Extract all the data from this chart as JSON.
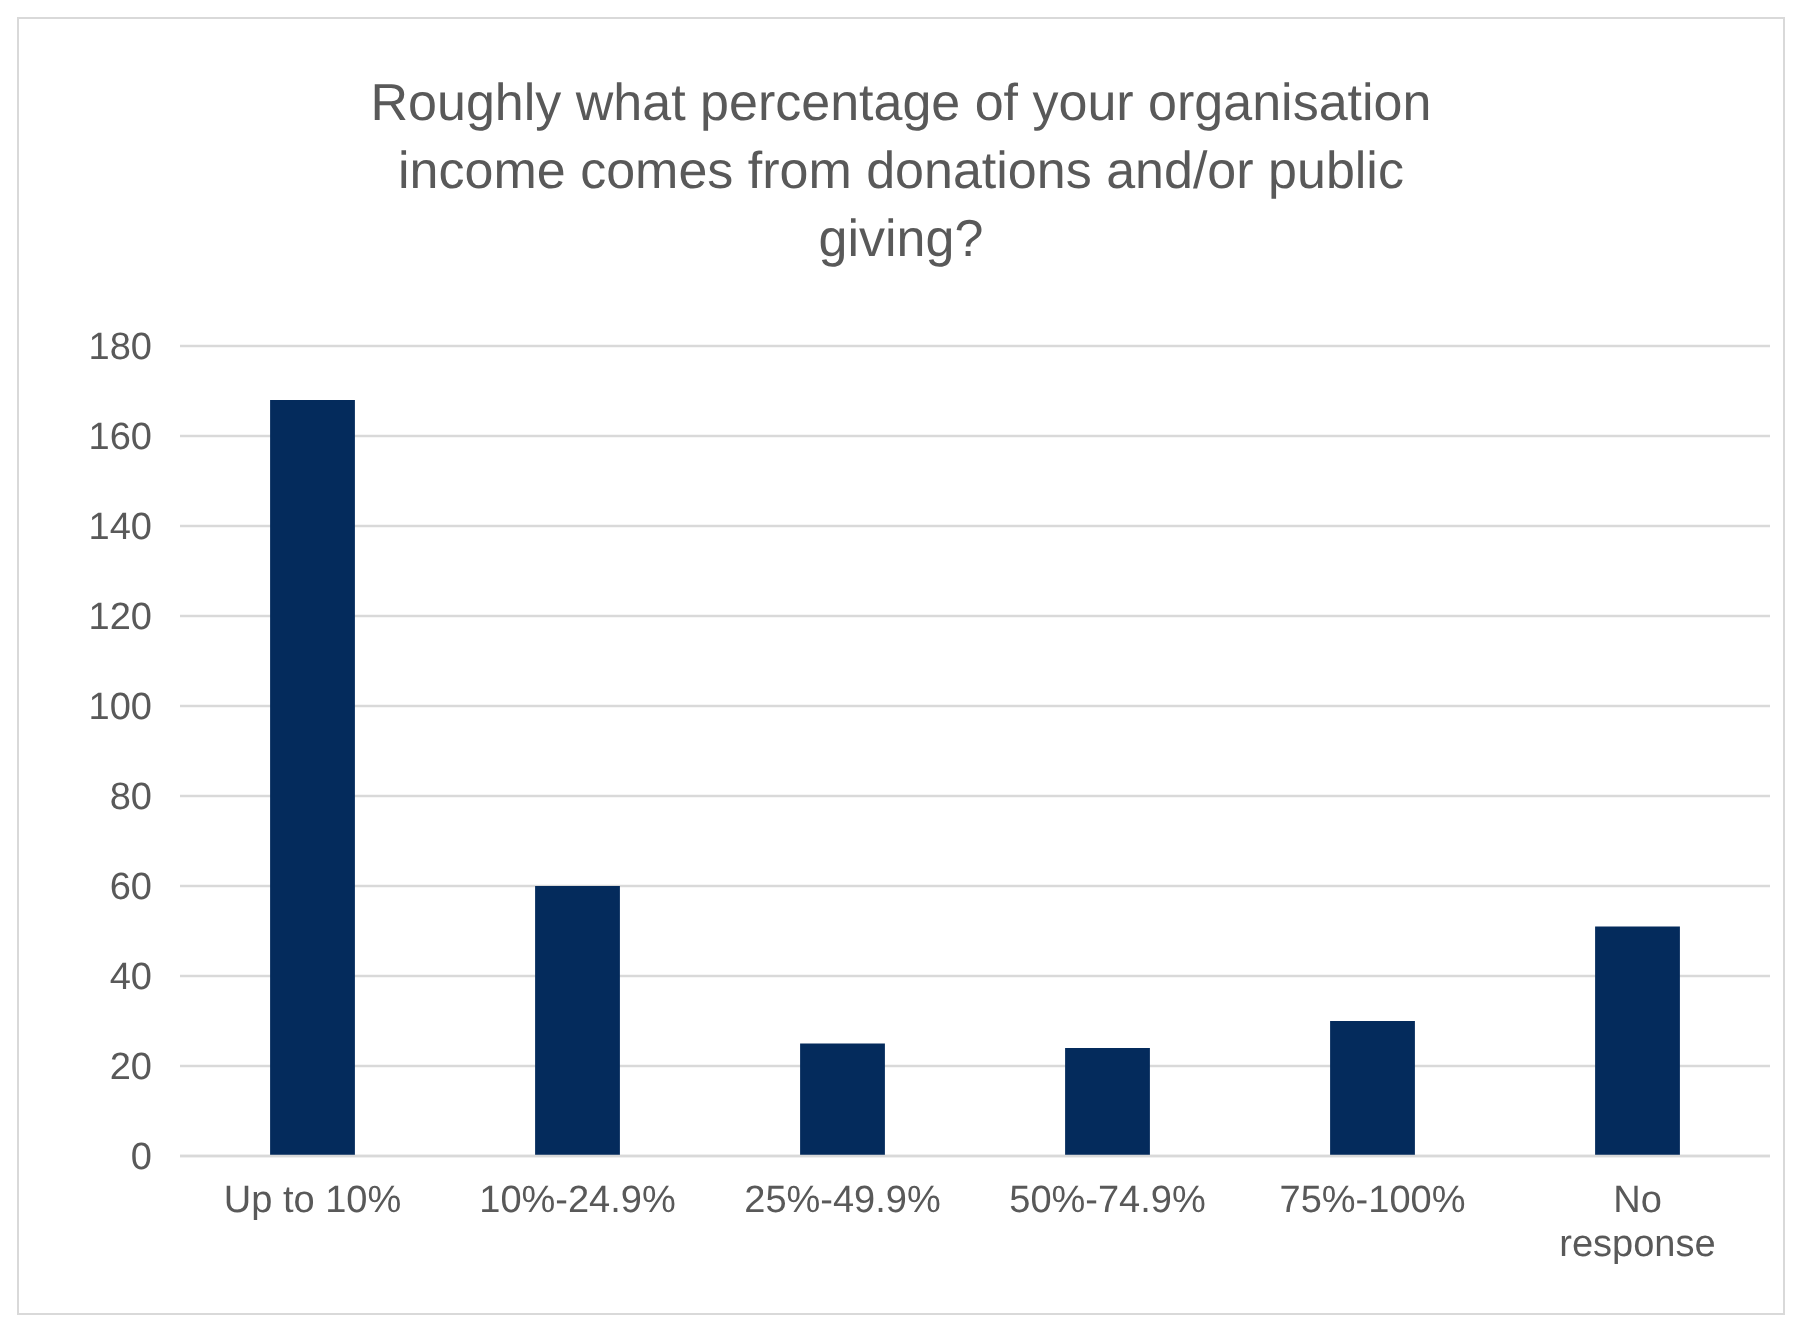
{
  "chart_data": {
    "type": "bar",
    "title": "Roughly what percentage of your organisation income comes from donations and/or public giving?",
    "categories": [
      "Up to 10%",
      "10%-24.9%",
      "25%-49.9%",
      "50%-74.9%",
      "75%-100%",
      "No response"
    ],
    "values": [
      168,
      60,
      25,
      24,
      30,
      51
    ],
    "color": "#042b5c",
    "ylim": [
      0,
      180
    ],
    "yticks": [
      0,
      20,
      40,
      60,
      80,
      100,
      120,
      140,
      160,
      180
    ],
    "grid": "y"
  }
}
